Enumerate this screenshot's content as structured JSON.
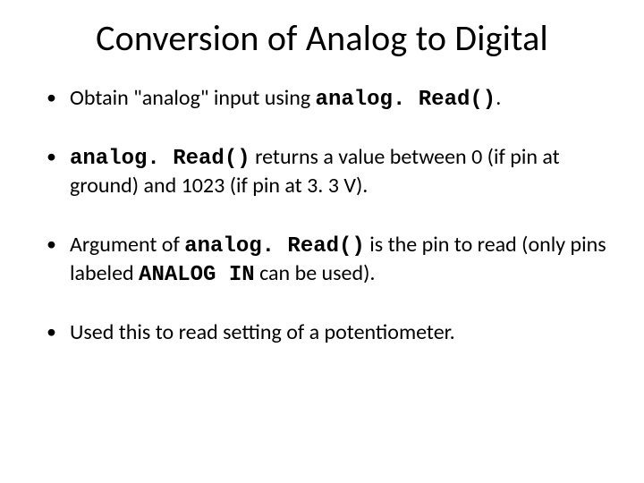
{
  "title": "Conversion of Analog to Digital",
  "bullets": [
    {
      "pre": "Obtain \"analog\" input using ",
      "code1": "analog. Read()",
      "mid": ".",
      "code2": "",
      "post": ""
    },
    {
      "pre": "",
      "code1": "analog. Read()",
      "mid": " returns a value between 0 (if pin at ground) and 1023 (if pin at 3. 3 V).",
      "code2": "",
      "post": ""
    },
    {
      "pre": "Argument of ",
      "code1": "analog. Read()",
      "mid": " is the pin to read (only pins labeled ",
      "code2": "ANALOG IN",
      "post": " can be used)."
    },
    {
      "pre": "Used this to read setting of a potentiometer.",
      "code1": "",
      "mid": "",
      "code2": "",
      "post": ""
    }
  ],
  "style": {
    "background_color": "#ffffff",
    "text_color": "#000000",
    "title_fontsize": 40,
    "body_fontsize": 24,
    "mono_font": "Courier New",
    "body_font": "Calibri"
  }
}
